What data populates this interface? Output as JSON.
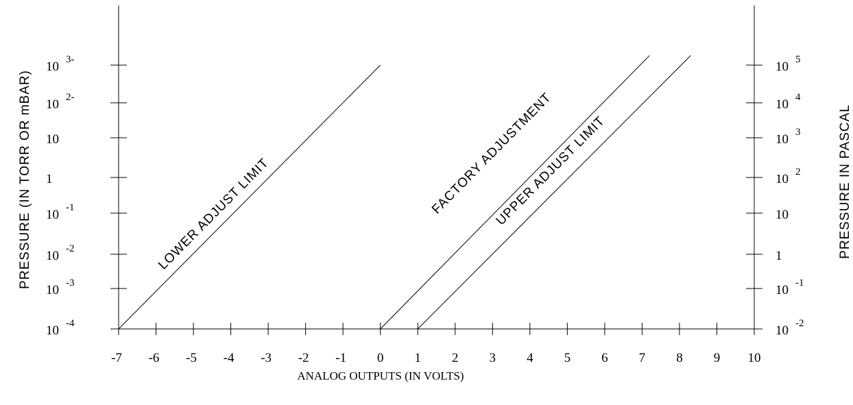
{
  "chart_data": {
    "type": "line",
    "xlabel": "ANALOG OUTPUTS (IN VOLTS)",
    "ylabel_left": "PRESSURE  (IN  TORR  OR  mBAR)",
    "ylabel_right": "PRESSURE  IN  PASCAL",
    "xlim": [
      -7,
      10
    ],
    "x_ticks": [
      "-7",
      "-6",
      "-5",
      "-4",
      "-3",
      "-2",
      "-1",
      "0",
      "1",
      "2",
      "3",
      "4",
      "5",
      "6",
      "7",
      "8",
      "9",
      "10"
    ],
    "y_scale": "log",
    "left_ticks": [
      {
        "base": "10",
        "exp": "-4",
        "value": 0.0001
      },
      {
        "base": "10",
        "exp": "-3",
        "value": 0.001
      },
      {
        "base": "10",
        "exp": "-2",
        "value": 0.01
      },
      {
        "base": "10",
        "exp": "-1",
        "value": 0.1
      },
      {
        "base": "1",
        "exp": "",
        "value": 1
      },
      {
        "base": "10",
        "exp": "",
        "value": 10
      },
      {
        "base": "10",
        "exp": "2-",
        "value": 100
      },
      {
        "base": "10",
        "exp": "3-",
        "value": 1000
      }
    ],
    "right_ticks": [
      {
        "base": "10",
        "exp": "-2"
      },
      {
        "base": "10",
        "exp": "-1"
      },
      {
        "base": "1",
        "exp": ""
      },
      {
        "base": "10",
        "exp": ""
      },
      {
        "base": "10",
        "exp": "2"
      },
      {
        "base": "10",
        "exp": "3"
      },
      {
        "base": "10",
        "exp": "4"
      },
      {
        "base": "10",
        "exp": "5"
      }
    ],
    "series": [
      {
        "name": "LOWER  ADJUST  LIMIT",
        "x": [
          -7,
          0
        ],
        "y": [
          0.0001,
          1000
        ]
      },
      {
        "name": "FACTORY  ADJUSTMENT",
        "x": [
          0,
          7.2
        ],
        "y": [
          0.0001,
          1800
        ]
      },
      {
        "name": "UPPER  ADJUST  LIMIT",
        "x": [
          1,
          8.3
        ],
        "y": [
          0.0001,
          1800
        ]
      }
    ],
    "grid": false
  }
}
